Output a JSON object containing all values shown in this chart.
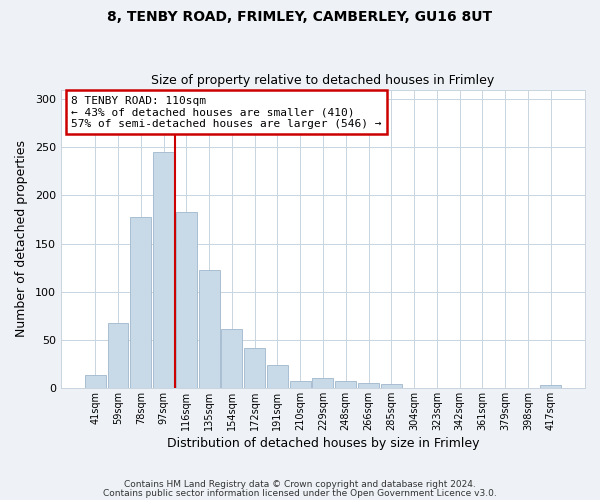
{
  "title1": "8, TENBY ROAD, FRIMLEY, CAMBERLEY, GU16 8UT",
  "title2": "Size of property relative to detached houses in Frimley",
  "xlabel": "Distribution of detached houses by size in Frimley",
  "ylabel": "Number of detached properties",
  "categories": [
    "41sqm",
    "59sqm",
    "78sqm",
    "97sqm",
    "116sqm",
    "135sqm",
    "154sqm",
    "172sqm",
    "191sqm",
    "210sqm",
    "229sqm",
    "248sqm",
    "266sqm",
    "285sqm",
    "304sqm",
    "323sqm",
    "342sqm",
    "361sqm",
    "379sqm",
    "398sqm",
    "417sqm"
  ],
  "values": [
    13,
    67,
    178,
    245,
    183,
    122,
    61,
    41,
    24,
    7,
    10,
    7,
    5,
    4,
    0,
    0,
    0,
    0,
    0,
    0,
    3
  ],
  "bar_color": "#c8d9e8",
  "bar_edge_color": "#a0b8cc",
  "vline_x": 3.5,
  "vline_color": "#cc0000",
  "annotation_text": "8 TENBY ROAD: 110sqm\n← 43% of detached houses are smaller (410)\n57% of semi-detached houses are larger (546) →",
  "annotation_box_color": "#ffffff",
  "annotation_box_edge": "#cc0000",
  "ylim": [
    0,
    310
  ],
  "yticks": [
    0,
    50,
    100,
    150,
    200,
    250,
    300
  ],
  "footer1": "Contains HM Land Registry data © Crown copyright and database right 2024.",
  "footer2": "Contains public sector information licensed under the Open Government Licence v3.0.",
  "background_color": "#eef2f6",
  "plot_bg_color": "#ffffff",
  "grid_color": "#c8d4de"
}
